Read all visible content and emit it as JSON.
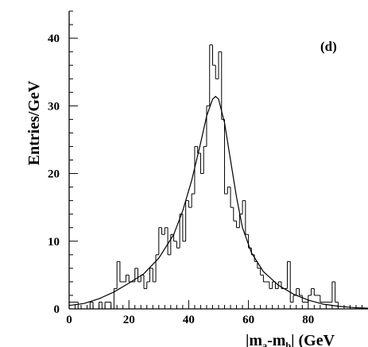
{
  "chart_data": {
    "type": "histogram",
    "panel_label": "(d)",
    "ylabel": "Entries/GeV",
    "xlabel_parts": [
      "|m",
      "a",
      "-m",
      "b",
      "| (GeV"
    ],
    "xlim": [
      0,
      100
    ],
    "ylim": [
      0,
      44
    ],
    "xticks": [
      0,
      20,
      40,
      60,
      80
    ],
    "xtick_labels": [
      "0",
      "20",
      "40",
      "60",
      "80"
    ],
    "yticks": [
      0,
      10,
      20,
      30,
      40
    ],
    "ytick_labels": [
      "0",
      "10",
      "20",
      "30",
      "40"
    ],
    "bin_width": 1,
    "x_start": 0,
    "histogram_counts": [
      1,
      1,
      1,
      0,
      0,
      0,
      0,
      1,
      0,
      0,
      1,
      0,
      1,
      1,
      0,
      3,
      7,
      4,
      4,
      5,
      4,
      4,
      6,
      4,
      5,
      3,
      4,
      6,
      4,
      8,
      12,
      11,
      12,
      8,
      11,
      10,
      9,
      14,
      10,
      16,
      15,
      17,
      24,
      23,
      20,
      24,
      30,
      39,
      36,
      34,
      38,
      28,
      17,
      18,
      15,
      13,
      12,
      14,
      16,
      11,
      9,
      8,
      7,
      6,
      5,
      4,
      4,
      3,
      4,
      3,
      4,
      3,
      3,
      7,
      1,
      2,
      3,
      2,
      1,
      1,
      2,
      3,
      2,
      2,
      1,
      1,
      1,
      1,
      4,
      1,
      0,
      0,
      0,
      0,
      0,
      0,
      0,
      0,
      0,
      0
    ],
    "fit_curve": {
      "x": [
        0,
        5,
        10,
        15,
        20,
        25,
        30,
        35,
        38,
        41,
        44,
        46,
        48,
        49,
        50,
        52,
        54,
        56,
        58,
        61,
        65,
        70,
        75,
        80,
        85,
        90,
        95,
        100
      ],
      "y": [
        0.5,
        0.8,
        1.5,
        2.5,
        3.8,
        5.2,
        7.5,
        11.0,
        14.5,
        19.0,
        24.5,
        28.5,
        31.0,
        31.4,
        31.0,
        27.5,
        22.0,
        16.5,
        12.0,
        8.3,
        5.5,
        3.5,
        2.2,
        1.3,
        0.7,
        0.4,
        0.2,
        0.1
      ]
    },
    "legend": "none",
    "grid": false
  }
}
